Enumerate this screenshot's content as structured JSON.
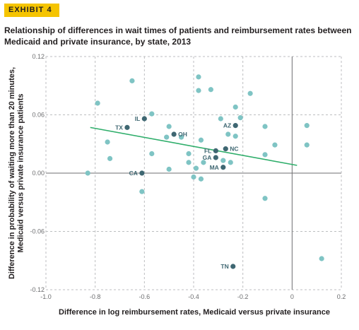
{
  "header": {
    "exhibit": "EXHIBIT 4",
    "title": "Relationship of differences in wait times of patients and reimbursement rates between Medicaid and private insurance, by state, 2013"
  },
  "colors": {
    "accent": "#f5c400",
    "point": "#7fc4c4",
    "labeled_point": "#3f6772",
    "fit_line": "#2fae6b",
    "grid": "#bcbec0",
    "zero_line": "#6d6e70"
  },
  "chart_data": {
    "type": "scatter",
    "xlabel": "Difference in log reimbursement rates, Medicaid versus private insurance",
    "ylabel": "Difference in probability of waiting more than 20 minutes, Medicaid versus private insurance patients",
    "xlim": [
      -1.0,
      0.2
    ],
    "ylim": [
      -0.12,
      0.12
    ],
    "x_ticks": [
      "-1.0",
      "-0.8",
      "-0.6",
      "-0.4",
      "-0.2",
      "0",
      "0.2"
    ],
    "y_ticks": [
      "0.12",
      "0.06",
      "0.00",
      "-0.06",
      "-0.12"
    ],
    "grid": "dashed horizontal and vertical",
    "fit_line": {
      "x": [
        -0.82,
        0.02
      ],
      "y": [
        0.047,
        0.008
      ]
    },
    "labeled_points": [
      {
        "label": "IL",
        "x": -0.6,
        "y": 0.056
      },
      {
        "label": "TX",
        "x": -0.67,
        "y": 0.047
      },
      {
        "label": "OH",
        "x": -0.48,
        "y": 0.04
      },
      {
        "label": "AZ",
        "x": -0.23,
        "y": 0.049
      },
      {
        "label": "FL",
        "x": -0.31,
        "y": 0.023
      },
      {
        "label": "NC",
        "x": -0.27,
        "y": 0.025
      },
      {
        "label": "GA",
        "x": -0.31,
        "y": 0.016
      },
      {
        "label": "MA",
        "x": -0.28,
        "y": 0.006
      },
      {
        "label": "CA",
        "x": -0.61,
        "y": 0.0
      },
      {
        "label": "TN",
        "x": -0.24,
        "y": -0.096
      }
    ],
    "points": [
      {
        "x": -0.83,
        "y": 0.0
      },
      {
        "x": -0.79,
        "y": 0.072
      },
      {
        "x": -0.75,
        "y": 0.032
      },
      {
        "x": -0.74,
        "y": 0.015
      },
      {
        "x": -0.65,
        "y": 0.095
      },
      {
        "x": -0.57,
        "y": 0.061
      },
      {
        "x": -0.61,
        "y": -0.019
      },
      {
        "x": -0.57,
        "y": 0.02
      },
      {
        "x": -0.5,
        "y": 0.004
      },
      {
        "x": -0.5,
        "y": 0.048
      },
      {
        "x": -0.51,
        "y": 0.037
      },
      {
        "x": -0.45,
        "y": 0.037
      },
      {
        "x": -0.42,
        "y": 0.02
      },
      {
        "x": -0.42,
        "y": 0.011
      },
      {
        "x": -0.4,
        "y": -0.004
      },
      {
        "x": -0.39,
        "y": 0.005
      },
      {
        "x": -0.38,
        "y": 0.099
      },
      {
        "x": -0.37,
        "y": 0.034
      },
      {
        "x": -0.37,
        "y": -0.006
      },
      {
        "x": -0.36,
        "y": 0.011
      },
      {
        "x": -0.33,
        "y": 0.086
      },
      {
        "x": -0.38,
        "y": 0.085
      },
      {
        "x": -0.29,
        "y": 0.056
      },
      {
        "x": -0.28,
        "y": 0.013
      },
      {
        "x": -0.25,
        "y": 0.011
      },
      {
        "x": -0.23,
        "y": 0.068
      },
      {
        "x": -0.23,
        "y": 0.038
      },
      {
        "x": -0.21,
        "y": 0.057
      },
      {
        "x": -0.17,
        "y": 0.082
      },
      {
        "x": -0.11,
        "y": 0.048
      },
      {
        "x": -0.11,
        "y": 0.019
      },
      {
        "x": -0.11,
        "y": -0.026
      },
      {
        "x": -0.07,
        "y": 0.029
      },
      {
        "x": 0.06,
        "y": 0.049
      },
      {
        "x": 0.06,
        "y": 0.029
      },
      {
        "x": 0.12,
        "y": -0.088
      },
      {
        "x": -0.26,
        "y": 0.04
      }
    ]
  }
}
